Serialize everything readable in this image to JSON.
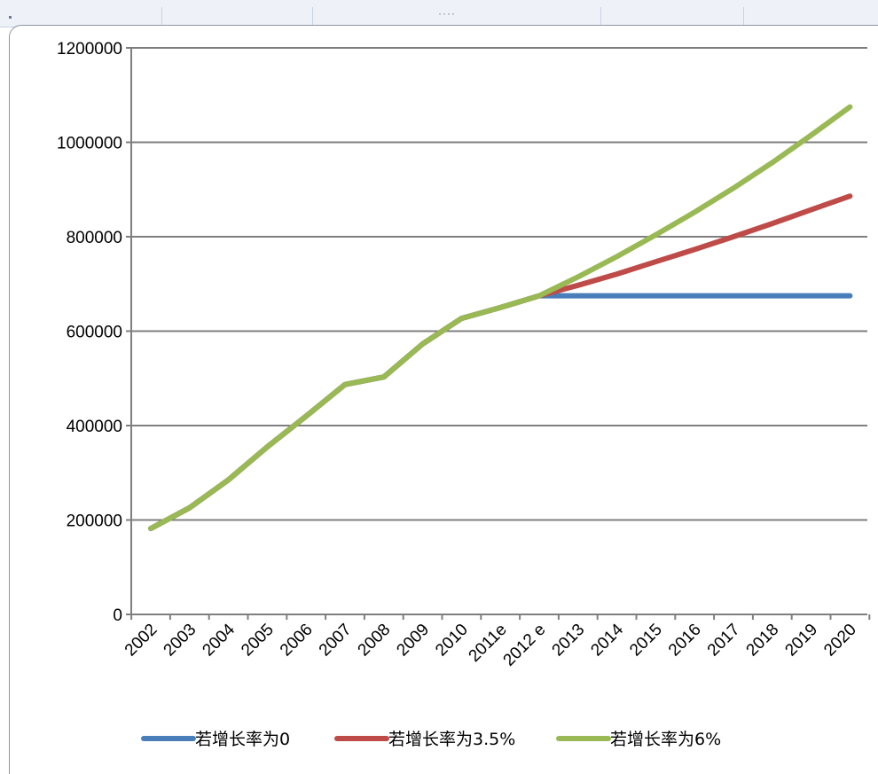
{
  "chart_data": {
    "type": "line",
    "categories": [
      "2002",
      "2003",
      "2004",
      "2005",
      "2006",
      "2007",
      "2008",
      "2009",
      "2010",
      "2011e",
      "2012 e",
      "2013",
      "2014",
      "2015",
      "2016",
      "2017",
      "2018",
      "2019",
      "2020"
    ],
    "series": [
      {
        "name": "若增长率为0",
        "color": "#4a7ebb",
        "values": [
          182000,
          226000,
          285000,
          355000,
          420000,
          487000,
          503000,
          573000,
          627000,
          650000,
          675000,
          675000,
          675000,
          675000,
          675000,
          675000,
          675000,
          675000,
          675000
        ]
      },
      {
        "name": "若增长率为3.5%",
        "color": "#be4b48",
        "values": [
          182000,
          226000,
          285000,
          355000,
          420000,
          487000,
          503000,
          573000,
          627000,
          650000,
          675000,
          697000,
          721000,
          747000,
          773000,
          800000,
          828000,
          857000,
          886000
        ]
      },
      {
        "name": "若增长率为6%",
        "color": "#98b954",
        "values": [
          182000,
          226000,
          285000,
          355000,
          420000,
          487000,
          503000,
          573000,
          627000,
          650000,
          675000,
          715000,
          758000,
          804000,
          852000,
          903000,
          957000,
          1015000,
          1075000
        ]
      }
    ],
    "y_ticks": [
      "0",
      "200000",
      "400000",
      "600000",
      "800000",
      "1000000",
      "1200000"
    ],
    "ylim": [
      0,
      1200000
    ],
    "grid": true,
    "legend_position": "bottom",
    "title": "",
    "xlabel": "",
    "ylabel": ""
  }
}
